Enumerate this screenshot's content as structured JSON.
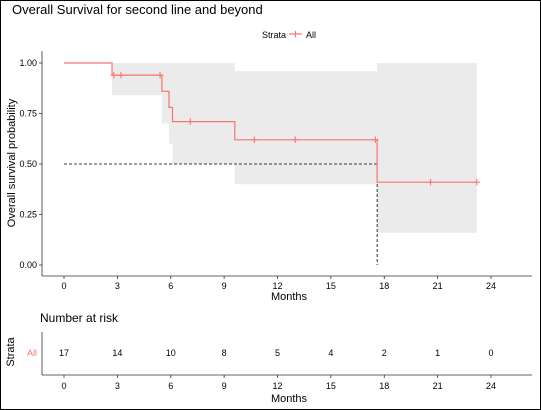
{
  "chart_data": [
    {
      "type": "line",
      "subtype": "kaplan-meier",
      "title": "Overall Survival for second line and beyond",
      "legend": {
        "title": "Strata",
        "entries": [
          "All"
        ],
        "position": "top",
        "color": "#F8766D"
      },
      "xlabel": "Months",
      "ylabel": "Overall survival probability",
      "xlim": [
        0,
        24
      ],
      "ylim": [
        0,
        1
      ],
      "x_ticks": [
        "0",
        "3",
        "6",
        "9",
        "12",
        "15",
        "18",
        "21",
        "24"
      ],
      "y_ticks": [
        "0.00",
        "0.25",
        "0.50",
        "0.75",
        "1.00"
      ],
      "series": [
        {
          "name": "All",
          "color": "#F8766D",
          "steps": [
            {
              "x": 0,
              "y": 1.0
            },
            {
              "x": 2.7,
              "y": 0.94
            },
            {
              "x": 5.5,
              "y": 0.86
            },
            {
              "x": 5.9,
              "y": 0.78
            },
            {
              "x": 6.1,
              "y": 0.71
            },
            {
              "x": 9.6,
              "y": 0.62
            },
            {
              "x": 17.6,
              "y": 0.41
            }
          ],
          "end_x": 23.2,
          "censor_points": [
            {
              "x": 2.8,
              "y": 0.94
            },
            {
              "x": 3.2,
              "y": 0.94
            },
            {
              "x": 5.4,
              "y": 0.94
            },
            {
              "x": 7.1,
              "y": 0.71
            },
            {
              "x": 10.7,
              "y": 0.62
            },
            {
              "x": 13.0,
              "y": 0.62
            },
            {
              "x": 17.5,
              "y": 0.62
            },
            {
              "x": 20.6,
              "y": 0.41
            },
            {
              "x": 23.2,
              "y": 0.41
            }
          ],
          "ci_band": [
            {
              "x": 0,
              "lower": 1.0,
              "upper": 1.0
            },
            {
              "x": 2.7,
              "lower": 0.84,
              "upper": 1.0
            },
            {
              "x": 5.5,
              "lower": 0.7,
              "upper": 1.0
            },
            {
              "x": 5.9,
              "lower": 0.6,
              "upper": 1.0
            },
            {
              "x": 6.1,
              "lower": 0.5,
              "upper": 1.0
            },
            {
              "x": 9.6,
              "lower": 0.4,
              "upper": 0.96
            },
            {
              "x": 17.6,
              "lower": 0.16,
              "upper": 1.0
            }
          ],
          "ci_end_x": 23.2
        }
      ],
      "median_line": {
        "y": 0.5,
        "x": 17.6
      },
      "grid": false
    },
    {
      "type": "table",
      "title": "Number at risk",
      "ylabel": "Strata",
      "xlabel": "Months",
      "row_label": "All",
      "times": [
        0,
        3,
        6,
        9,
        12,
        15,
        18,
        21,
        24
      ],
      "counts": [
        17,
        14,
        10,
        8,
        5,
        4,
        2,
        1,
        0
      ],
      "x_ticks": [
        "0",
        "3",
        "6",
        "9",
        "12",
        "15",
        "18",
        "21",
        "24"
      ]
    }
  ]
}
